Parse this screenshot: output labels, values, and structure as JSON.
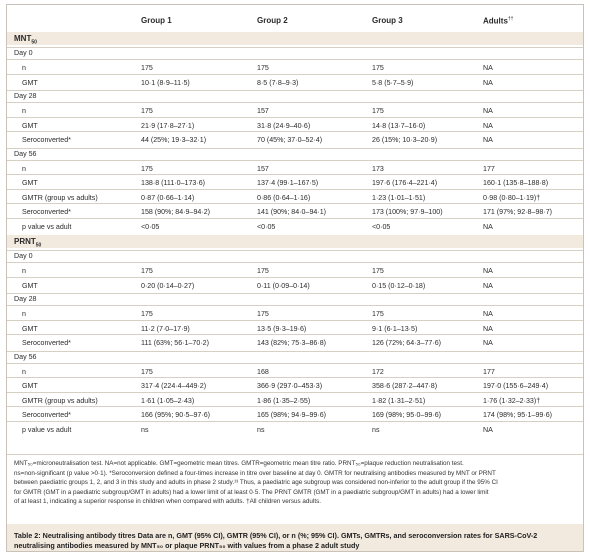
{
  "columns": [
    "",
    "Group 1",
    "Group 2",
    "Group 3",
    "Adults"
  ],
  "adults_sup": "††",
  "sections": [
    {
      "name": "MNT",
      "sub": "50",
      "blocks": [
        {
          "day": "Day 0",
          "rows": [
            {
              "label": "n",
              "v": [
                "175",
                "175",
                "175",
                "NA"
              ]
            },
            {
              "label": "GMT",
              "v": [
                "10·1 (8·9–11·5)",
                "8·5 (7·8–9·3)",
                "5·8 (5·7–5·9)",
                "NA"
              ]
            }
          ]
        },
        {
          "day": "Day 28",
          "rows": [
            {
              "label": "n",
              "v": [
                "175",
                "157",
                "175",
                "NA"
              ]
            },
            {
              "label": "GMT",
              "v": [
                "21·9 (17·8–27·1)",
                "31·8 (24·9–40·6)",
                "14·8 (13·7–16·0)",
                "NA"
              ]
            },
            {
              "label": "Seroconverted*",
              "v": [
                "44 (25%; 19·3–32·1)",
                "70 (45%; 37·0–52·4)",
                "26 (15%; 10·3–20·9)",
                "NA"
              ]
            }
          ]
        },
        {
          "day": "Day 56",
          "rows": [
            {
              "label": "n",
              "v": [
                "175",
                "157",
                "173",
                "177"
              ]
            },
            {
              "label": "GMT",
              "v": [
                "138·8 (111·0–173·6)",
                "137·4 (99·1–167·5)",
                "197·6 (176·4–221·4)",
                "160·1 (135·8–188·8)"
              ]
            },
            {
              "label": "GMTR (group vs adults)",
              "v": [
                "0·87 (0·66–1·14)",
                "0·86 (0·64–1·16)",
                "1·23 (1·01–1·51)",
                "0·98 (0·80–1·19)†"
              ]
            },
            {
              "label": "Seroconverted*",
              "v": [
                "158 (90%; 84·9–94·2)",
                "141 (90%; 84·0–94·1)",
                "173 (100%; 97·9–100)",
                "171 (97%; 92·8–98·7)"
              ]
            },
            {
              "label": "p value vs adult",
              "v": [
                "<0·05",
                "<0·05",
                "<0·05",
                "NA"
              ]
            }
          ]
        }
      ]
    },
    {
      "name": "PRNT",
      "sub": "50",
      "blocks": [
        {
          "day": "Day 0",
          "rows": [
            {
              "label": "n",
              "v": [
                "175",
                "175",
                "175",
                "NA"
              ]
            },
            {
              "label": "GMT",
              "v": [
                "0·20 (0·14–0·27)",
                "0·11 (0·09–0·14)",
                "0·15 (0·12–0·18)",
                "NA"
              ]
            }
          ]
        },
        {
          "day": "Day 28",
          "rows": [
            {
              "label": "n",
              "v": [
                "175",
                "175",
                "175",
                "NA"
              ]
            },
            {
              "label": "GMT",
              "v": [
                "11·2 (7·0–17·9)",
                "13·5 (9·3–19·6)",
                "9·1 (6·1–13·5)",
                "NA"
              ]
            },
            {
              "label": "Seroconverted*",
              "v": [
                "111 (63%; 56·1–70·2)",
                "143 (82%; 75·3–86·8)",
                "126 (72%; 64·3–77·6)",
                "NA"
              ]
            }
          ]
        },
        {
          "day": "Day 56",
          "rows": [
            {
              "label": "n",
              "v": [
                "175",
                "168",
                "172",
                "177"
              ]
            },
            {
              "label": "GMT",
              "v": [
                "317·4 (224·4–449·2)",
                "366·9 (297·0–453·3)",
                "358·6 (287·2–447·8)",
                "197·0 (155·6–249·4)"
              ]
            },
            {
              "label": "GMTR (group vs adults)",
              "v": [
                "1·61 (1·05–2·43)",
                "1·86 (1·35–2·55)",
                "1·82 (1·31–2·51)",
                "1·76 (1·32–2·33)†"
              ]
            },
            {
              "label": "Seroconverted*",
              "v": [
                "166 (95%; 90·5–97·6)",
                "165 (98%; 94·9–99·6)",
                "169 (98%; 95·0–99·6)",
                "174 (98%; 95·1–99·6)"
              ]
            },
            {
              "label": "p value vs adult",
              "v": [
                "ns",
                "ns",
                "ns",
                "NA"
              ]
            }
          ]
        }
      ]
    }
  ],
  "footnotes": [
    "MNT₅₀=microneutralisation test. NA=not applicable. GMT=geometric mean titres. GMTR=geometric mean titre ratio. PRNT₅₀=plaque reduction neutralisation test.",
    "ns=non-significant (p value >0·1). *Seroconversion defined a four-times increase in titre over baseline at day 0. GMTR for neutralising antibodies measured by MNT or PRNT",
    "between paediatric groups 1, 2, and 3 in this study and adults in phase 2 study.¹³ Thus, a paediatric age subgroup was considered non-inferior to the adult group if the 95% CI",
    "for GMTR (GMT in a paediatric subgroup/GMT in adults) had a lower limit of at least 0·5. The PRNT GMTR (GMT in a paediatric subgroup/GMT in adults) had a lower limit",
    "of at least 1, indicating a superior response in children when compared with adults. †All children versus adults."
  ],
  "caption": [
    "Table 2: Neutralising antibody titres Data are n, GMT (95% CI), GMTR (95% CI), or n (%; 95% CI). GMTs, GMTRs, and seroconversion rates for SARS-CoV-2",
    "neutralising antibodies measured by MNT₅₀ or plaque PRNT₅₀ with values from a phase 2 adult study"
  ]
}
